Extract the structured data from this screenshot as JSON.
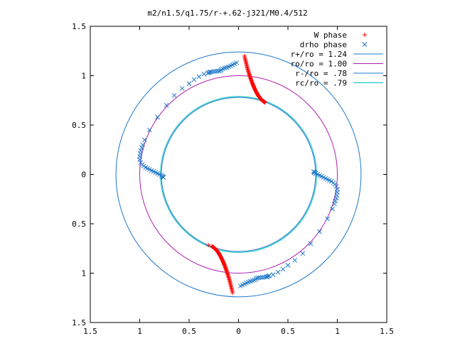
{
  "chart_data": {
    "type": "scatter",
    "title": "m2/n1.5/q1.75/r-+.62-j321/M0.4/512",
    "xlabel": "",
    "ylabel": "",
    "xlim": [
      -1.5,
      1.5
    ],
    "ylim": [
      -1.5,
      1.5
    ],
    "xticks": [
      -1.5,
      -1,
      -0.5,
      0,
      0.5,
      1,
      1.5
    ],
    "yticks": [
      -1.5,
      -1,
      -0.5,
      0,
      0.5,
      1,
      1.5
    ],
    "xtick_labels": [
      "1.5",
      "1",
      "0.5",
      "0",
      "0.5",
      "1",
      "1.5"
    ],
    "ytick_labels": [
      "1.5",
      "1",
      "0.5",
      "0",
      "0.5",
      "1",
      "1.5"
    ],
    "grid": false,
    "legend_position": "top-right",
    "circles": [
      {
        "name": "r+/ro = 1.24",
        "radius": 1.24,
        "color": "#1f78c8"
      },
      {
        "name": "ro/ro = 1.00",
        "radius": 1.0,
        "color": "#b020b0"
      },
      {
        "name": "r-/ro = .78",
        "radius": 0.78,
        "color": "#1f78c8"
      },
      {
        "name": "rc/ro = .79",
        "radius": 0.79,
        "color": "#00c0c0"
      }
    ],
    "series": [
      {
        "name": "W phase",
        "marker": "+",
        "color": "#ff0000",
        "x": [
          0.06,
          0.063,
          0.066,
          0.069,
          0.072,
          0.075,
          0.078,
          0.081,
          0.084,
          0.087,
          0.09,
          0.093,
          0.096,
          0.099,
          0.102,
          0.105,
          0.108,
          0.111,
          0.114,
          0.117,
          0.12,
          0.123,
          0.126,
          0.129,
          0.132,
          0.135,
          0.138,
          0.141,
          0.144,
          0.147,
          0.15,
          0.153,
          0.156,
          0.159,
          0.162,
          0.165,
          0.168,
          0.171,
          0.174,
          0.177,
          0.18,
          0.183,
          0.186,
          0.189,
          0.192,
          0.195,
          0.198,
          0.201,
          0.204,
          0.207,
          0.21,
          0.213,
          0.216,
          0.219,
          0.222,
          0.225,
          0.228,
          0.231,
          0.234,
          0.237,
          0.24,
          0.243,
          0.246,
          0.249,
          0.252,
          0.255,
          0.258,
          0.261,
          0.264,
          0.267,
          0.27,
          -0.06,
          -0.063,
          -0.066,
          -0.069,
          -0.072,
          -0.075,
          -0.078,
          -0.081,
          -0.084,
          -0.087,
          -0.09,
          -0.093,
          -0.096,
          -0.099,
          -0.102,
          -0.105,
          -0.108,
          -0.111,
          -0.114,
          -0.117,
          -0.12,
          -0.123,
          -0.126,
          -0.129,
          -0.132,
          -0.135,
          -0.138,
          -0.141,
          -0.144,
          -0.147,
          -0.15,
          -0.153,
          -0.156,
          -0.159,
          -0.162,
          -0.165,
          -0.168,
          -0.171,
          -0.174,
          -0.177,
          -0.18,
          -0.183,
          -0.186,
          -0.189,
          -0.192,
          -0.195,
          -0.198,
          -0.201,
          -0.204,
          -0.207,
          -0.21,
          -0.213,
          -0.216,
          -0.219,
          -0.222,
          -0.225,
          -0.228,
          -0.231,
          -0.234,
          -0.237,
          -0.24,
          -0.243,
          -0.246,
          -0.249,
          -0.252,
          -0.255,
          -0.258,
          -0.261,
          -0.264,
          -0.267,
          -0.27,
          -0.305
        ],
        "y": [
          1.2,
          1.185,
          1.172,
          1.16,
          1.148,
          1.136,
          1.124,
          1.112,
          1.1,
          1.088,
          1.077,
          1.066,
          1.055,
          1.045,
          1.035,
          1.025,
          1.015,
          1.006,
          0.997,
          0.988,
          0.979,
          0.97,
          0.961,
          0.953,
          0.945,
          0.937,
          0.929,
          0.921,
          0.913,
          0.906,
          0.899,
          0.892,
          0.885,
          0.878,
          0.871,
          0.864,
          0.858,
          0.852,
          0.846,
          0.84,
          0.834,
          0.828,
          0.822,
          0.817,
          0.812,
          0.807,
          0.802,
          0.797,
          0.792,
          0.788,
          0.784,
          0.78,
          0.776,
          0.772,
          0.768,
          0.765,
          0.762,
          0.759,
          0.756,
          0.753,
          0.75,
          0.747,
          0.745,
          0.742,
          0.74,
          0.738,
          0.736,
          0.734,
          0.732,
          0.73,
          0.728,
          -1.2,
          -1.185,
          -1.172,
          -1.16,
          -1.148,
          -1.136,
          -1.124,
          -1.112,
          -1.1,
          -1.088,
          -1.077,
          -1.066,
          -1.055,
          -1.045,
          -1.035,
          -1.025,
          -1.015,
          -1.006,
          -0.997,
          -0.988,
          -0.979,
          -0.97,
          -0.961,
          -0.953,
          -0.945,
          -0.937,
          -0.929,
          -0.921,
          -0.913,
          -0.906,
          -0.899,
          -0.892,
          -0.885,
          -0.878,
          -0.871,
          -0.864,
          -0.858,
          -0.852,
          -0.846,
          -0.84,
          -0.834,
          -0.828,
          -0.822,
          -0.817,
          -0.812,
          -0.807,
          -0.802,
          -0.797,
          -0.792,
          -0.788,
          -0.784,
          -0.78,
          -0.776,
          -0.772,
          -0.768,
          -0.765,
          -0.762,
          -0.759,
          -0.756,
          -0.753,
          -0.75,
          -0.747,
          -0.745,
          -0.742,
          -0.74,
          -0.738,
          -0.736,
          -0.734,
          -0.732,
          -0.73,
          -0.728,
          -0.715
        ]
      },
      {
        "name": "drho phase",
        "marker": "x",
        "color": "#1f78c8",
        "x": [
          0.02,
          0.04,
          0.06,
          0.08,
          0.1,
          0.12,
          0.14,
          0.16,
          0.175,
          0.185,
          0.2,
          0.22,
          0.24,
          0.26,
          0.28,
          0.29,
          0.3,
          0.31,
          0.35,
          0.4,
          0.45,
          0.5,
          0.57,
          0.65,
          0.73,
          0.82,
          0.9,
          0.95,
          0.97,
          0.98,
          0.99,
          0.995,
          1.0,
          1.0,
          0.99,
          0.975,
          0.96,
          0.94,
          0.92,
          0.9,
          0.88,
          0.86,
          0.84,
          0.82,
          0.8,
          0.78,
          0.77,
          0.765,
          0.76,
          -0.02,
          -0.04,
          -0.06,
          -0.08,
          -0.1,
          -0.12,
          -0.14,
          -0.16,
          -0.175,
          -0.185,
          -0.2,
          -0.22,
          -0.24,
          -0.26,
          -0.28,
          -0.29,
          -0.3,
          -0.31,
          -0.35,
          -0.4,
          -0.45,
          -0.5,
          -0.57,
          -0.65,
          -0.73,
          -0.82,
          -0.9,
          -0.95,
          -0.97,
          -0.98,
          -0.99,
          -0.995,
          -1.0,
          -1.0,
          -0.99,
          -0.975,
          -0.96,
          -0.94,
          -0.92,
          -0.9,
          -0.88,
          -0.86,
          -0.84,
          -0.82,
          -0.8,
          -0.78,
          -0.77,
          -0.765,
          -0.76
        ],
        "y": [
          -1.13,
          -1.12,
          -1.11,
          -1.1,
          -1.09,
          -1.083,
          -1.077,
          -1.07,
          -1.06,
          -1.05,
          -1.047,
          -1.045,
          -1.043,
          -1.04,
          -1.037,
          -1.037,
          -1.03,
          -1.025,
          -1.015,
          -0.99,
          -0.96,
          -0.92,
          -0.87,
          -0.8,
          -0.7,
          -0.58,
          -0.45,
          -0.35,
          -0.3,
          -0.27,
          -0.24,
          -0.21,
          -0.18,
          -0.15,
          -0.12,
          -0.1,
          -0.085,
          -0.07,
          -0.06,
          -0.05,
          -0.04,
          -0.03,
          -0.02,
          -0.01,
          0.0,
          0.01,
          0.02,
          0.025,
          0.03,
          1.13,
          1.12,
          1.11,
          1.1,
          1.09,
          1.083,
          1.077,
          1.07,
          1.06,
          1.05,
          1.047,
          1.045,
          1.043,
          1.04,
          1.037,
          1.037,
          1.03,
          1.025,
          1.015,
          0.99,
          0.96,
          0.92,
          0.87,
          0.8,
          0.7,
          0.58,
          0.45,
          0.35,
          0.3,
          0.27,
          0.24,
          0.21,
          0.18,
          0.15,
          0.12,
          0.1,
          0.085,
          0.07,
          0.06,
          0.05,
          0.04,
          0.03,
          0.02,
          0.01,
          0.0,
          -0.01,
          -0.02,
          -0.025,
          -0.03
        ]
      }
    ]
  }
}
